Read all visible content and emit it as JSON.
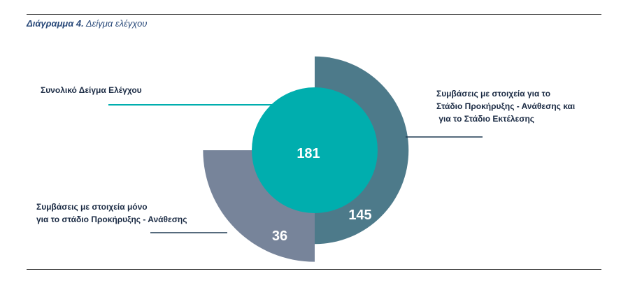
{
  "caption": {
    "label": "Διάγραμμα 4.",
    "text": "Δείγμα ελέγχου"
  },
  "chart_data": {
    "type": "pie",
    "title": "Δείγμα ελέγχου",
    "categories": [
      "Συνολικό Δείγμα Ελέγχου",
      "Συμβάσεις με στοιχεία για το Στάδιο Προκήρυξης - Ανάθεσης και για το Στάδιο Εκτέλεσης",
      "Συμβάσεις με στοιχεία μόνο για το στάδιο Προκήρυξης - Ανάθεσης"
    ],
    "values": [
      181,
      145,
      36
    ],
    "value_labels": [
      "181",
      "145",
      "36"
    ],
    "colors": [
      "#00aeae",
      "#4d7a8a",
      "#77849a"
    ],
    "legend": "callouts"
  },
  "labels": {
    "total": [
      "Συνολικό Δείγμα Ελέγχου"
    ],
    "both_stages": [
      "Συμβάσεις με στοιχεία για το",
      "Στάδιο Προκήρυξης - Ανάθεσης και",
      " για το Στάδιο Εκτέλεσης"
    ],
    "award_only": [
      "Συμβάσεις με στοιχεία μόνο",
      "για το στάδιο Προκήρυξης - Ανάθεσης"
    ]
  },
  "colors": {
    "leader_total": "#00aeae",
    "leader_other": "#1f3a52",
    "text": "#1b2b44",
    "caption": "#2a4a7a"
  }
}
